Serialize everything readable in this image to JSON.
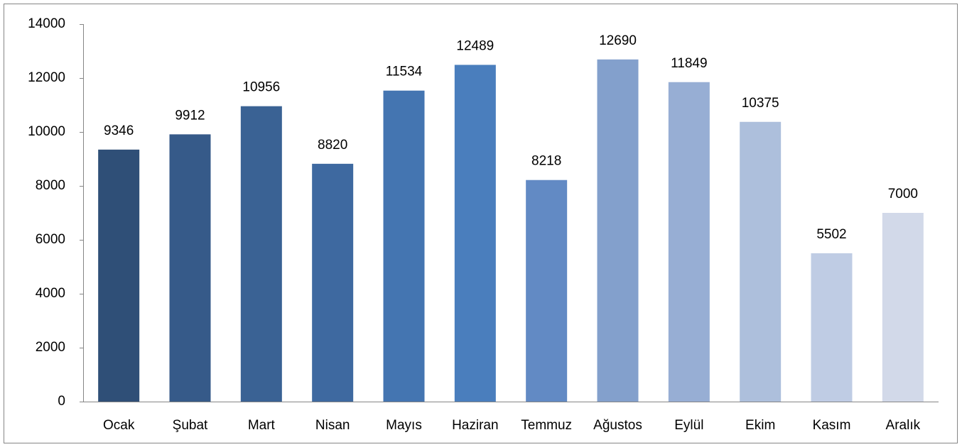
{
  "chart_data": {
    "type": "bar",
    "categories": [
      "Ocak",
      "Şubat",
      "Mart",
      "Nisan",
      "Mayıs",
      "Haziran",
      "Temmuz",
      "Ağustos",
      "Eylül",
      "Ekim",
      "Kasım",
      "Aralık"
    ],
    "values": [
      9346,
      9912,
      10956,
      8820,
      11534,
      12489,
      8218,
      12690,
      11849,
      10375,
      5502,
      7000
    ],
    "colors": [
      "#2f4f77",
      "#365a89",
      "#3a6294",
      "#3e69a0",
      "#4475b1",
      "#4a7ebd",
      "#628ac4",
      "#83a0cc",
      "#97aed4",
      "#adbfdc",
      "#bfcce4",
      "#d2d9e9"
    ],
    "ylim": [
      0,
      14000
    ],
    "yticks": [
      0,
      2000,
      4000,
      6000,
      8000,
      10000,
      12000,
      14000
    ],
    "grid": false
  }
}
